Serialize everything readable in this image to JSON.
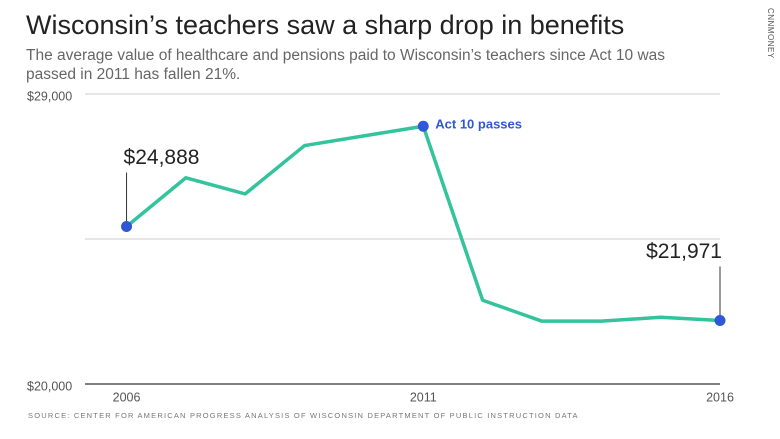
{
  "chart_data": {
    "type": "line",
    "title": "Wisconsin’s teachers saw a sharp drop in benefits",
    "subtitle": "The average value of healthcare and pensions paid to Wisconsin’s teachers since Act 10 was passed in 2011 has fallen 21%.",
    "source": "SOURCE: CENTER FOR AMERICAN PROGRESS ANALYSIS OF WISCONSIN DEPARTMENT OF PUBLIC INSTRUCTION DATA",
    "brand": "CNNMONEY",
    "x": [
      2006,
      2007,
      2008,
      2009,
      2010,
      2011,
      2012,
      2013,
      2014,
      2015,
      2016
    ],
    "series": [
      {
        "name": "Benefits",
        "color": "#33c39d",
        "values": [
          24888,
          26400,
          25900,
          27400,
          27700,
          28000,
          22600,
          21950,
          21950,
          22070,
          21971
        ],
        "value_labels": [
          "$24,888",
          null,
          null,
          null,
          null,
          null,
          null,
          null,
          null,
          null,
          "$21,971"
        ]
      }
    ],
    "marker_color": "#2f57d6",
    "annotations": [
      {
        "x": 2011,
        "text": "Act 10 passes"
      }
    ],
    "xlim": [
      2005.3,
      2016
    ],
    "xticks": [
      2006,
      2011,
      2016
    ],
    "ylim": [
      20000,
      29000
    ],
    "yticks": [
      {
        "value": 20000,
        "label": "$20,000"
      },
      {
        "value": 29000,
        "label": "$29,000"
      }
    ],
    "ygrid": [
      24500
    ],
    "grid": true
  }
}
